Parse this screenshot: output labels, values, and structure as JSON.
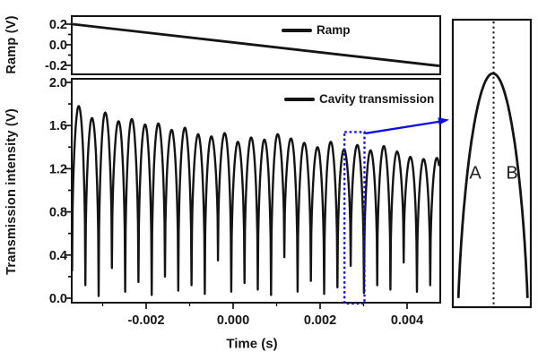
{
  "figure": {
    "background": "#ffffff",
    "curve_color": "#141414",
    "accent_blue": "#0d0de0"
  },
  "chart_data": [
    {
      "id": "ramp-panel",
      "type": "line",
      "legend": [
        "Ramp"
      ],
      "ylabel": "Ramp (V)",
      "xlabel": "",
      "xlim_s": [
        -0.00371,
        0.00476
      ],
      "ylim_v": [
        -0.29,
        0.28
      ],
      "yticks": [
        0.2,
        0.0,
        -0.2
      ],
      "ytick_labels": [
        "0.2",
        "0.0",
        "-0.2"
      ],
      "yticks_minor": [
        0.1,
        -0.1
      ],
      "x_s": [
        -0.00371,
        0.00476
      ],
      "y_v": [
        0.2,
        -0.205
      ]
    },
    {
      "id": "cavity-transmission-panel",
      "type": "line",
      "legend": [
        "Cavity transmission"
      ],
      "ylabel": "Transmission intensity (V)",
      "xlabel": "Time (s)",
      "xlim_s": [
        -0.00371,
        0.00476
      ],
      "ylim_v": [
        -0.04,
        2.03
      ],
      "xticks": [
        -0.002,
        0.0,
        0.002,
        0.004
      ],
      "xtick_labels": [
        "-0.002",
        "0.000",
        "0.002",
        "0.004"
      ],
      "xticks_minor": [
        -0.003,
        -0.001,
        0.001,
        0.003
      ],
      "yticks": [
        0.0,
        0.4,
        0.8,
        1.2,
        1.6,
        2.0
      ],
      "ytick_labels": [
        "0.0",
        "0.4",
        "0.8",
        "1.2",
        "1.6",
        "2.0"
      ],
      "yticks_minor": [
        0.2,
        0.6,
        1.0,
        1.4,
        1.8
      ],
      "fringes": {
        "first_peak_t_s": -0.00355,
        "period_s": 0.000305,
        "arch_exponent": 0.45,
        "peak_heights_v": [
          1.78,
          1.67,
          1.72,
          1.64,
          1.66,
          1.61,
          1.62,
          1.56,
          1.58,
          1.52,
          1.5,
          1.53,
          1.45,
          1.49,
          1.47,
          1.52,
          1.48,
          1.44,
          1.4,
          1.45,
          1.38,
          1.42,
          1.37,
          1.41,
          1.36,
          1.31,
          1.29,
          1.3
        ],
        "valley_depths_v": [
          0.25,
          0.12,
          0.02,
          0.28,
          0.06,
          0.15,
          0.03,
          0.2,
          0.07,
          0.12,
          0.04,
          0.35,
          0.06,
          0.14,
          0.08,
          0.03,
          0.38,
          0.06,
          0.16,
          0.04,
          0.1,
          0.3,
          0.05,
          0.12,
          0.08,
          0.33,
          0.06,
          0.12,
          0.1
        ]
      },
      "zoom_box": {
        "t_s": [
          0.00256,
          0.00302
        ],
        "v": [
          0.0,
          1.54
        ],
        "boxed_peak_t_s": 0.002855,
        "boxed_peak_v": 1.42
      }
    },
    {
      "id": "inset-zoom-panel",
      "type": "line",
      "description": "Magnified view of the fringe inside the dotted box",
      "t_window_s": [
        0.00259,
        0.00307
      ],
      "peak_value_v": 1.42,
      "valley_value_v": 0.0,
      "labels": [
        "A",
        "B"
      ],
      "dotted_line": "fringe center"
    }
  ]
}
